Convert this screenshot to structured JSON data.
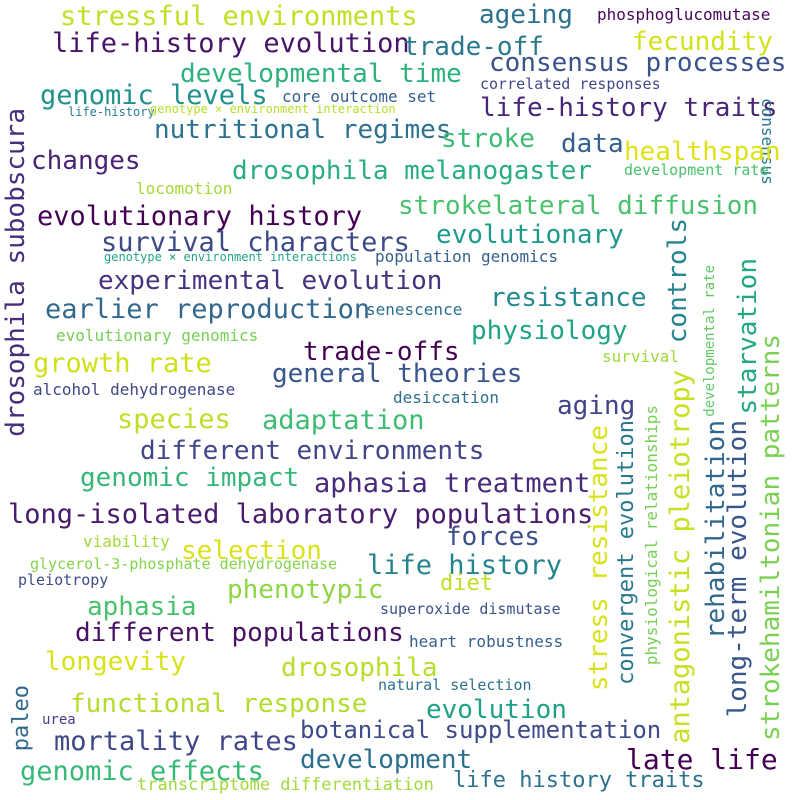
{
  "words": [
    {
      "text": "stressful environments",
      "color": "#c2df23"
    },
    {
      "text": "ageing",
      "color": "#2c718e"
    },
    {
      "text": "phosphoglucomutase",
      "color": "#46075a"
    },
    {
      "text": "life-history evolution",
      "color": "#481467"
    },
    {
      "text": "trade-off",
      "color": "#2a788e"
    },
    {
      "text": "fecundity",
      "color": "#d2e21b"
    },
    {
      "text": "consensus processes",
      "color": "#3b528b"
    },
    {
      "text": "developmental time",
      "color": "#2db27d"
    },
    {
      "text": "genomic levels",
      "color": "#21918c"
    },
    {
      "text": "core outcome set",
      "color": "#355f8d"
    },
    {
      "text": "correlated responses",
      "color": "#3e4989"
    },
    {
      "text": "life-history",
      "color": "#287d8e"
    },
    {
      "text": "genotype × environment interaction",
      "color": "#b5de2b"
    },
    {
      "text": "life-history traits",
      "color": "#482677"
    },
    {
      "text": "consensus",
      "color": "#2a788e"
    },
    {
      "text": "nutritional regimes",
      "color": "#2c728e"
    },
    {
      "text": "stroke",
      "color": "#3bbb75"
    },
    {
      "text": "data",
      "color": "#355f8d"
    },
    {
      "text": "healthspan",
      "color": "#dde318"
    },
    {
      "text": "changes",
      "color": "#482475"
    },
    {
      "text": "drosophila melanogaster",
      "color": "#28ae80"
    },
    {
      "text": "development rate",
      "color": "#4ac16d"
    },
    {
      "text": "locomotion",
      "color": "#a5db36"
    },
    {
      "text": "evolutionary history",
      "color": "#440154"
    },
    {
      "text": "strokelateral diffusion",
      "color": "#4ac16d"
    },
    {
      "text": "drosophila subobscura",
      "color": "#472d7b"
    },
    {
      "text": "evolutionary",
      "color": "#1f9a8a"
    },
    {
      "text": "survival characters",
      "color": "#3e4989"
    },
    {
      "text": "controls",
      "color": "#25848e"
    },
    {
      "text": "genotype × environment interactions",
      "color": "#20a386"
    },
    {
      "text": "population genomics",
      "color": "#355f8d"
    },
    {
      "text": "experimental evolution",
      "color": "#46327e"
    },
    {
      "text": "developmental rate",
      "color": "#5ec962"
    },
    {
      "text": "starvation",
      "color": "#22a785"
    },
    {
      "text": "earlier reproduction",
      "color": "#31688e"
    },
    {
      "text": "resistance",
      "color": "#23898e"
    },
    {
      "text": "senescence",
      "color": "#2d708e"
    },
    {
      "text": "evolutionary genomics",
      "color": "#75d054"
    },
    {
      "text": "physiology",
      "color": "#20a486"
    },
    {
      "text": "strokehamiltonian patterns",
      "color": "#7ad151"
    },
    {
      "text": "trade-offs",
      "color": "#440154"
    },
    {
      "text": "growth rate",
      "color": "#d0e11c"
    },
    {
      "text": "survival",
      "color": "#9fda3a"
    },
    {
      "text": "general theories",
      "color": "#39568c"
    },
    {
      "text": "antagonistic pleiotropy",
      "color": "#c8e020"
    },
    {
      "text": "alcohol dehydrogenase",
      "color": "#3f4788"
    },
    {
      "text": "desiccation",
      "color": "#2e6e8e"
    },
    {
      "text": "aging",
      "color": "#414487"
    },
    {
      "text": "species",
      "color": "#bddf26"
    },
    {
      "text": "adaptation",
      "color": "#3fbc73"
    },
    {
      "text": "stress resistance",
      "color": "#d8e219"
    },
    {
      "text": "convergent evolution",
      "color": "#2a788e"
    },
    {
      "text": "physiological relationships",
      "color": "#75d054"
    },
    {
      "text": "rehabilitation",
      "color": "#31688e"
    },
    {
      "text": "long-term evolution",
      "color": "#39568c"
    },
    {
      "text": "different environments",
      "color": "#404688"
    },
    {
      "text": "genomic impact",
      "color": "#34b679"
    },
    {
      "text": "aphasia treatment",
      "color": "#472a7a"
    },
    {
      "text": "long-isolated laboratory populations",
      "color": "#481b6d"
    },
    {
      "text": "forces",
      "color": "#3d4e8a"
    },
    {
      "text": "viability",
      "color": "#a2da37"
    },
    {
      "text": "selection",
      "color": "#dae319"
    },
    {
      "text": "life history",
      "color": "#25858e"
    },
    {
      "text": "glycerol-3-phosphate dehydrogenase",
      "color": "#84d44b"
    },
    {
      "text": "diet",
      "color": "#c0df25"
    },
    {
      "text": "pleiotropy",
      "color": "#3e4c8a"
    },
    {
      "text": "phenotypic",
      "color": "#8ed645"
    },
    {
      "text": "aphasia",
      "color": "#4ac16d"
    },
    {
      "text": "superoxide dismutase",
      "color": "#3b528b"
    },
    {
      "text": "different populations",
      "color": "#471063"
    },
    {
      "text": "heart robustness",
      "color": "#355f8d"
    },
    {
      "text": "longevity",
      "color": "#d8e219"
    },
    {
      "text": "drosophila",
      "color": "#b8de29"
    },
    {
      "text": "natural selection",
      "color": "#2c718e"
    },
    {
      "text": "paleo",
      "color": "#31688e"
    },
    {
      "text": "functional response",
      "color": "#b2dd2d"
    },
    {
      "text": "evolution",
      "color": "#1fa188"
    },
    {
      "text": "urea",
      "color": "#433e85"
    },
    {
      "text": "botanical supplementation",
      "color": "#3e4a89"
    },
    {
      "text": "mortality rates",
      "color": "#3f4788"
    },
    {
      "text": "development",
      "color": "#2d708e"
    },
    {
      "text": "late life",
      "color": "#440154"
    },
    {
      "text": "genomic effects",
      "color": "#38b977"
    },
    {
      "text": "transcriptome differentiation",
      "color": "#a0da39"
    },
    {
      "text": "life history traits",
      "color": "#2c728e"
    }
  ]
}
